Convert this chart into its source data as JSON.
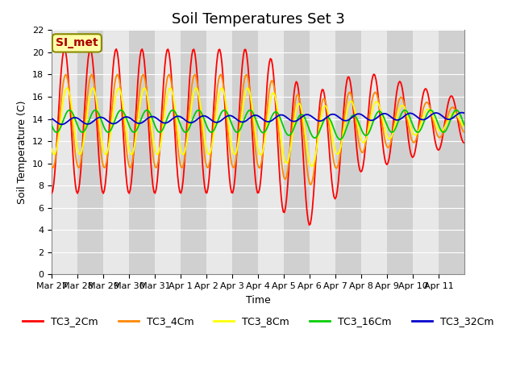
{
  "title": "Soil Temperatures Set 3",
  "xlabel": "Time",
  "ylabel": "Soil Temperature (C)",
  "annotation": "SI_met",
  "ylim": [
    0,
    22
  ],
  "yticks": [
    0,
    2,
    4,
    6,
    8,
    10,
    12,
    14,
    16,
    18,
    20,
    22
  ],
  "x_labels": [
    "Mar 27",
    "Mar 28",
    "Mar 29",
    "Mar 30",
    "Mar 31",
    "Apr 1",
    "Apr 2",
    "Apr 3",
    "Apr 4",
    "Apr 5",
    "Apr 6",
    "Apr 7",
    "Apr 8",
    "Apr 9",
    "Apr 10",
    "Apr 11"
  ],
  "series_colors": [
    "#ff0000",
    "#ff8800",
    "#ffff00",
    "#00cc00",
    "#0000cc"
  ],
  "series_names": [
    "TC3_2Cm",
    "TC3_4Cm",
    "TC3_8Cm",
    "TC3_16Cm",
    "TC3_32Cm"
  ],
  "title_fontsize": 13,
  "axis_fontsize": 9,
  "tick_fontsize": 8,
  "legend_fontsize": 9,
  "annotation_bg": "#ffffaa",
  "annotation_border": "#888800",
  "annotation_color": "#aa0000"
}
